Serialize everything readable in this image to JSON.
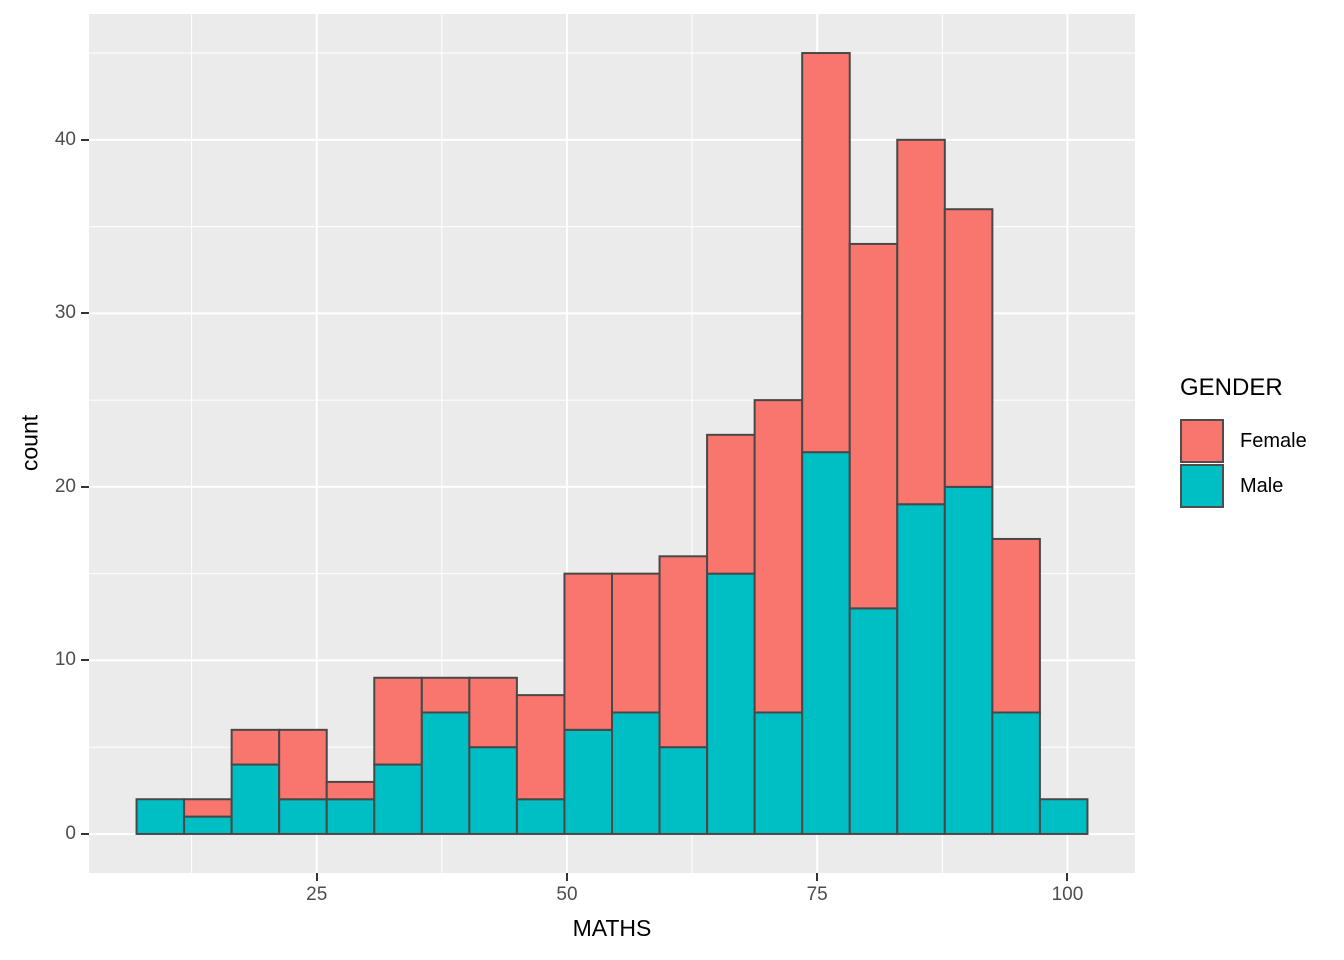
{
  "figure": {
    "background": "#FFFFFF",
    "panel_background": "#EBEBEB",
    "grid_color": "#FFFFFF",
    "tick_mark_color": "#333333",
    "tick_label_color": "#4D4D4D"
  },
  "chart_data": {
    "type": "bar",
    "subtype": "stacked-histogram",
    "title": "",
    "xlabel": "MATHS",
    "ylabel": "count",
    "bin_start": 7,
    "bin_width": 4.75,
    "bin_count": 20,
    "x_domain": [
      2.25,
      106.75
    ],
    "y_domain": [
      -2.25,
      47.25
    ],
    "x_ticks": [
      25,
      50,
      75,
      100
    ],
    "x_tick_labels": [
      "25",
      "50",
      "75",
      "100"
    ],
    "y_ticks": [
      0,
      10,
      20,
      30,
      40
    ],
    "y_tick_labels": [
      "0",
      "10",
      "20",
      "30",
      "40"
    ],
    "x_minor_ticks": [
      12.5,
      37.5,
      62.5,
      87.5
    ],
    "y_minor_ticks": [
      5,
      15,
      25,
      35,
      45
    ],
    "grid": "on",
    "bar_border_color": "#484848",
    "stack_order_bottom_to_top": [
      "Male",
      "Female"
    ],
    "series": [
      {
        "name": "Male",
        "color": "#00BFC4",
        "values": [
          2,
          1,
          4,
          2,
          2,
          4,
          7,
          5,
          2,
          6,
          7,
          5,
          15,
          7,
          22,
          13,
          19,
          20,
          7,
          2
        ]
      },
      {
        "name": "Female",
        "color": "#F8766D",
        "values": [
          0,
          1,
          2,
          4,
          1,
          5,
          2,
          4,
          6,
          9,
          8,
          11,
          8,
          18,
          23,
          21,
          21,
          16,
          10,
          0
        ]
      }
    ],
    "totals": [
      2,
      2,
      6,
      6,
      3,
      9,
      9,
      9,
      8,
      15,
      15,
      16,
      23,
      25,
      45,
      34,
      40,
      36,
      17,
      2
    ],
    "legend": {
      "title": "GENDER",
      "position": "right",
      "entries": [
        {
          "label": "Female",
          "color": "#F8766D"
        },
        {
          "label": "Male",
          "color": "#00BFC4"
        }
      ]
    }
  }
}
